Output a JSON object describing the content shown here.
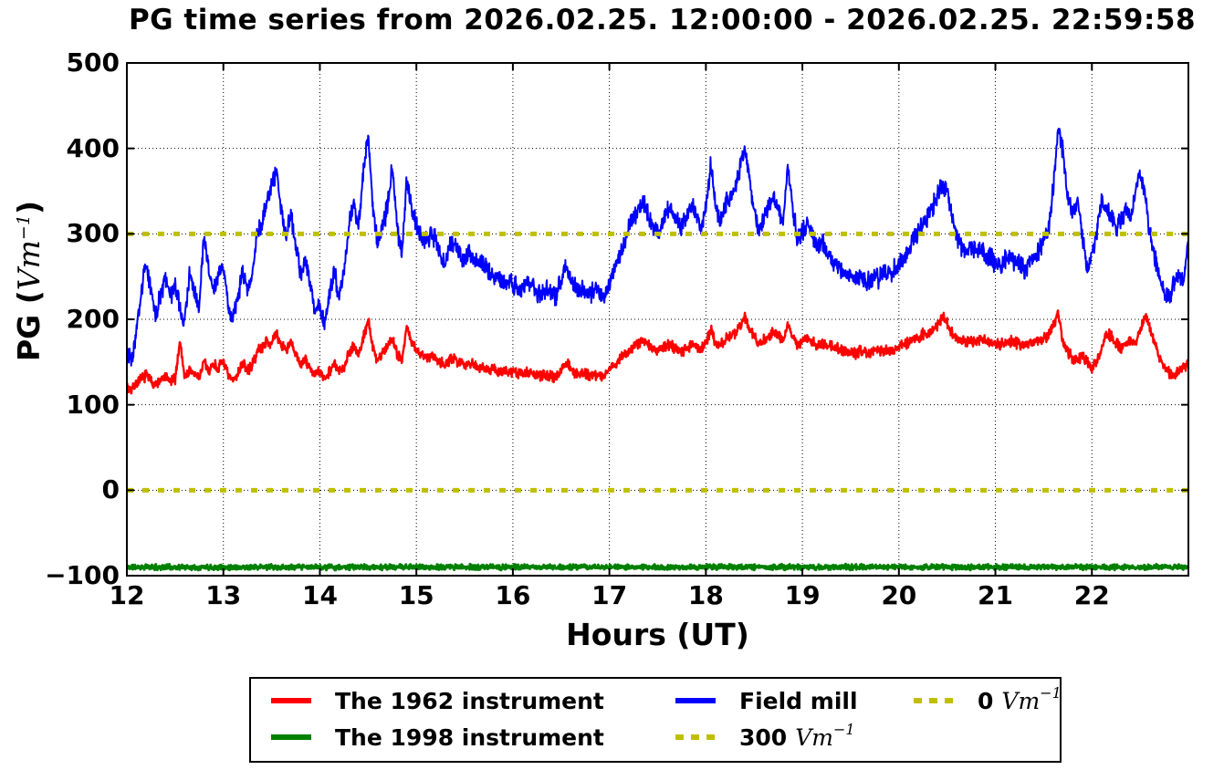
{
  "figure": {
    "ylabel_parts": {
      "prefix": "PG (",
      "unit": "Vm",
      "sup": "−1",
      "suffix": ")"
    }
  },
  "legend": {
    "items": [
      {
        "label": "The 1962 instrument",
        "color": "#ff0000",
        "dash": false
      },
      {
        "label": "The 1998 instrument",
        "color": "#008000",
        "dash": false
      },
      {
        "label": "Field mill",
        "color": "#0000ff",
        "dash": false
      },
      {
        "label": "300",
        "unit": "Vm",
        "sup": "−1",
        "color": "#bfbf00",
        "dash": true
      },
      {
        "label": "0",
        "unit": "Vm",
        "sup": "−1",
        "color": "#bfbf00",
        "dash": true
      }
    ]
  },
  "chart_data": {
    "type": "line",
    "title": "PG time series from 2026.02.25. 12:00:00 - 2026.02.25. 22:59:58",
    "xlabel": "Hours (UT)",
    "ylabel": "PG (Vm−1)",
    "xlim": [
      12,
      23
    ],
    "ylim": [
      -100,
      500
    ],
    "grid": true,
    "grid_style": "dotted",
    "legend_position": "below",
    "xticks": [
      12,
      13,
      14,
      15,
      16,
      17,
      18,
      19,
      20,
      21,
      22
    ],
    "xtick_labels": [
      "12",
      "13",
      "14",
      "15",
      "16",
      "17",
      "18",
      "19",
      "20",
      "21",
      "22"
    ],
    "yticks": [
      -100,
      0,
      100,
      200,
      300,
      400,
      500
    ],
    "ytick_labels": [
      "−100",
      "0",
      "100",
      "200",
      "300",
      "400",
      "500"
    ],
    "reference_lines": [
      {
        "name": "300 Vm−1",
        "value": 300,
        "color": "#bfbf00",
        "style": "dashed"
      },
      {
        "name": "0 Vm−1",
        "value": 0,
        "color": "#bfbf00",
        "style": "dashed"
      }
    ],
    "series": [
      {
        "id": "the-1962-instrument",
        "name": "The 1962 instrument",
        "color": "#ff0000",
        "width": 2.4,
        "noise": 5,
        "seed": 7,
        "x_start": 12,
        "x_step": 0.05,
        "values": [
          120,
          118,
          126,
          130,
          135,
          128,
          124,
          128,
          132,
          127,
          130,
          175,
          132,
          140,
          136,
          132,
          150,
          140,
          148,
          142,
          152,
          133,
          128,
          136,
          150,
          140,
          146,
          162,
          168,
          175,
          172,
          182,
          170,
          165,
          172,
          158,
          148,
          152,
          142,
          136,
          138,
          130,
          140,
          148,
          138,
          145,
          160,
          170,
          158,
          178,
          200,
          165,
          152,
          162,
          168,
          180,
          160,
          152,
          192,
          172,
          165,
          158,
          155,
          158,
          156,
          150,
          148,
          152,
          153,
          150,
          148,
          150,
          147,
          144,
          145,
          142,
          141,
          139,
          138,
          139,
          138,
          136,
          137,
          138,
          136,
          134,
          133,
          135,
          134,
          133,
          142,
          150,
          142,
          138,
          136,
          137,
          135,
          136,
          134,
          135,
          142,
          147,
          152,
          158,
          163,
          168,
          172,
          175,
          170,
          166,
          163,
          166,
          170,
          168,
          165,
          163,
          167,
          171,
          168,
          165,
          170,
          190,
          172,
          170,
          176,
          180,
          183,
          192,
          203,
          190,
          180,
          172,
          176,
          180,
          184,
          180,
          176,
          193,
          180,
          170,
          174,
          178,
          174,
          170,
          172,
          170,
          168,
          166,
          164,
          162,
          164,
          160,
          163,
          162,
          160,
          164,
          162,
          165,
          164,
          166,
          168,
          170,
          173,
          176,
          179,
          182,
          184,
          187,
          193,
          203,
          196,
          184,
          178,
          175,
          173,
          175,
          174,
          176,
          175,
          174,
          172,
          171,
          173,
          175,
          173,
          171,
          170,
          172,
          174,
          176,
          179,
          182,
          192,
          210,
          172,
          162,
          155,
          152,
          158,
          150,
          143,
          152,
          163,
          185,
          180,
          172,
          166,
          170,
          176,
          172,
          186,
          205,
          190,
          172,
          156,
          144,
          137,
          134,
          140,
          143,
          150
        ]
      },
      {
        "id": "the-1998-instrument",
        "name": "The 1998 instrument",
        "color": "#008000",
        "width": 3,
        "noise": 2.4,
        "seed": 11,
        "x_start": 12,
        "x_step": 0.05,
        "values": [
          -90,
          -90,
          -90,
          -90,
          -90,
          -90,
          -90,
          -90,
          -90,
          -90,
          -90,
          -90,
          -90,
          -90,
          -90,
          -90,
          -90,
          -90,
          -90,
          -90,
          -90,
          -90,
          -90,
          -90,
          -90,
          -90,
          -90,
          -90,
          -90,
          -90,
          -90,
          -90,
          -90,
          -90,
          -90,
          -90,
          -90,
          -90,
          -90,
          -90,
          -90,
          -90,
          -90,
          -90,
          -90,
          -90,
          -90,
          -90,
          -90,
          -90,
          -90,
          -90,
          -90,
          -90,
          -90,
          -90,
          -90,
          -90,
          -90,
          -90,
          -90,
          -90,
          -90,
          -90,
          -90,
          -90,
          -90,
          -90,
          -90,
          -90,
          -90,
          -90,
          -90,
          -90,
          -90,
          -90,
          -90,
          -90,
          -90,
          -90,
          -90,
          -90,
          -90,
          -90,
          -90,
          -90,
          -90,
          -90,
          -90,
          -90,
          -90,
          -90,
          -90,
          -90,
          -90,
          -90,
          -90,
          -90,
          -90,
          -90,
          -90,
          -90,
          -90,
          -90,
          -90,
          -90,
          -90,
          -90,
          -90,
          -90,
          -90,
          -90,
          -90,
          -90,
          -90,
          -90,
          -90,
          -90,
          -90,
          -90,
          -90,
          -90,
          -90,
          -90,
          -90,
          -90,
          -90,
          -90,
          -90,
          -90,
          -90,
          -90,
          -90,
          -90,
          -90,
          -90,
          -90,
          -90,
          -90,
          -90,
          -90,
          -90,
          -90,
          -90,
          -90,
          -90,
          -90,
          -90,
          -90,
          -90,
          -90,
          -90,
          -90,
          -90,
          -90,
          -90,
          -90,
          -90,
          -90,
          -90,
          -90,
          -90,
          -90,
          -90,
          -90,
          -90,
          -90,
          -90,
          -90,
          -90,
          -90,
          -90,
          -90,
          -90,
          -90,
          -90,
          -90,
          -90,
          -90,
          -90,
          -90,
          -90,
          -90,
          -90,
          -90,
          -90,
          -90,
          -90,
          -90,
          -90,
          -90,
          -90,
          -90,
          -90,
          -90,
          -90,
          -90,
          -90,
          -90,
          -90,
          -90,
          -90,
          -90,
          -90,
          -90,
          -90,
          -90,
          -90,
          -90,
          -90,
          -90,
          -90,
          -90,
          -90,
          -90,
          -90,
          -90,
          -90,
          -90,
          -90,
          -90
        ]
      },
      {
        "id": "field-mill",
        "name": "Field mill",
        "color": "#0000ff",
        "width": 2,
        "noise": 9,
        "seed": 3,
        "x_start": 12,
        "x_step": 0.05,
        "values": [
          165,
          150,
          185,
          230,
          265,
          235,
          205,
          230,
          248,
          225,
          238,
          212,
          196,
          255,
          235,
          218,
          298,
          258,
          232,
          252,
          265,
          212,
          200,
          226,
          256,
          236,
          252,
          300,
          312,
          338,
          355,
          374,
          330,
          302,
          324,
          286,
          252,
          270,
          240,
          206,
          216,
          196,
          230,
          258,
          226,
          252,
          310,
          338,
          306,
          372,
          414,
          332,
          286,
          310,
          330,
          380,
          310,
          276,
          364,
          330,
          312,
          296,
          290,
          300,
          296,
          272,
          262,
          286,
          290,
          276,
          270,
          280,
          270,
          262,
          266,
          256,
          250,
          246,
          240,
          246,
          240,
          236,
          238,
          242,
          238,
          232,
          228,
          236,
          232,
          228,
          248,
          262,
          248,
          238,
          232,
          236,
          230,
          235,
          228,
          226,
          245,
          258,
          272,
          288,
          305,
          318,
          330,
          336,
          322,
          310,
          300,
          312,
          330,
          325,
          315,
          308,
          322,
          335,
          322,
          310,
          330,
          382,
          330,
          318,
          335,
          345,
          352,
          378,
          404,
          368,
          330,
          302,
          318,
          330,
          342,
          330,
          315,
          378,
          330,
          292,
          302,
          312,
          300,
          285,
          292,
          280,
          270,
          264,
          256,
          250,
          256,
          244,
          252,
          248,
          242,
          252,
          248,
          256,
          252,
          258,
          265,
          272,
          280,
          292,
          302,
          312,
          322,
          330,
          346,
          360,
          352,
          318,
          298,
          286,
          278,
          286,
          282,
          278,
          276,
          272,
          266,
          262,
          268,
          272,
          268,
          262,
          258,
          268,
          272,
          280,
          292,
          302,
          355,
          420,
          398,
          340,
          322,
          342,
          298,
          255,
          278,
          302,
          340,
          330,
          318,
          308,
          315,
          330,
          318,
          350,
          374,
          345,
          302,
          272,
          248,
          232,
          225,
          242,
          252,
          242,
          295
        ]
      }
    ]
  }
}
